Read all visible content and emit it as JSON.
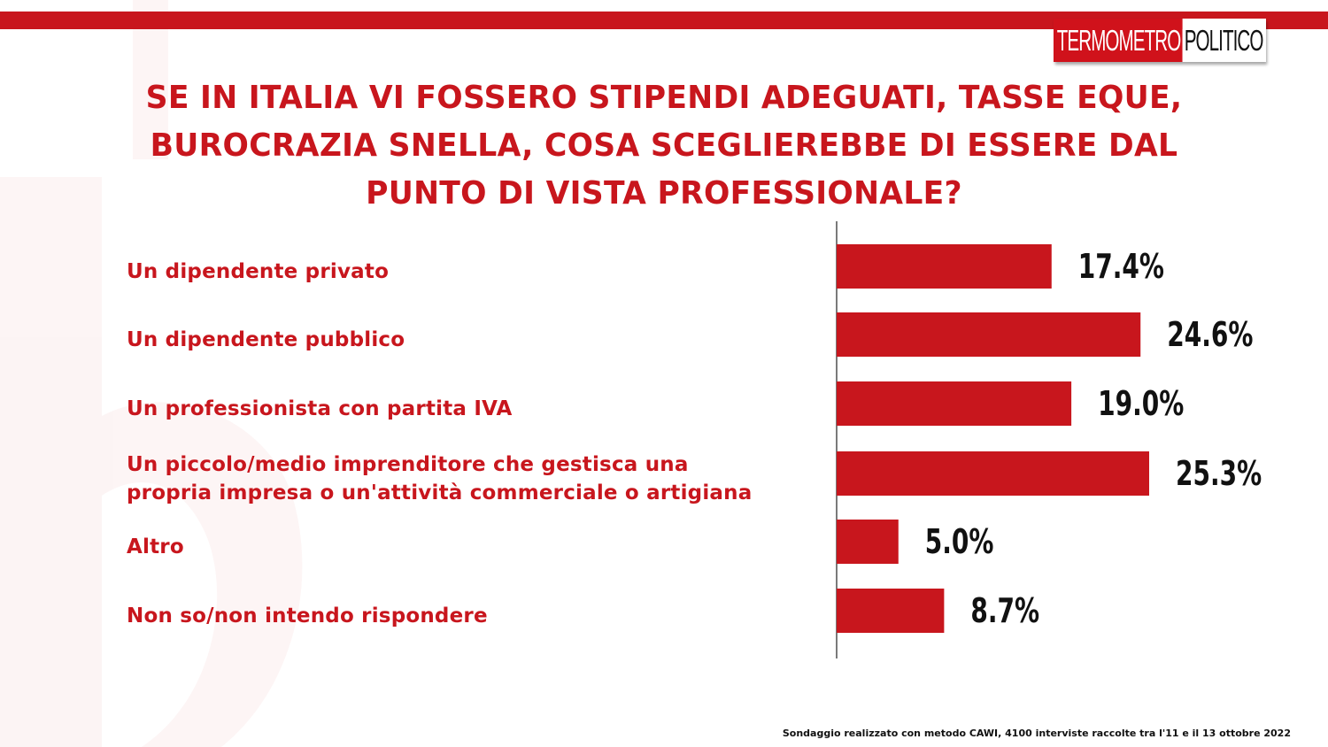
{
  "brand": {
    "logo_left": "TERMOMETRO",
    "logo_right": "POLITICO",
    "accent_color": "#c8161d",
    "text_color": "#111111"
  },
  "title_lines": [
    "SE IN ITALIA VI FOSSERO STIPENDI ADEGUATI, TASSE EQUE,",
    "BUROCRAZIA SNELLA, COSA SCEGLIEREBBE DI ESSERE DAL",
    "PUNTO DI VISTA PROFESSIONALE?"
  ],
  "footnote": "Sondaggio realizzato con metodo CAWI, 4100 interviste raccolte tra l'11 e il 13 ottobre 2022",
  "chart_data": {
    "type": "bar",
    "orientation": "horizontal",
    "categories": [
      [
        "Un dipendente privato"
      ],
      [
        "Un dipendente pubblico"
      ],
      [
        "Un professionista con partita IVA"
      ],
      [
        "Un piccolo/medio imprenditore che gestisca una",
        "propria impresa o un'attività  commerciale o artigiana"
      ],
      [
        "Altro"
      ],
      [
        "Non so/non intendo rispondere"
      ]
    ],
    "values": [
      17.4,
      24.6,
      19.0,
      25.3,
      5.0,
      8.7
    ],
    "value_labels": [
      "17.4%",
      "24.6%",
      "19.0%",
      "25.3%",
      "5.0%",
      "8.7%"
    ],
    "unit": "%",
    "bar_color": "#c8161d",
    "xlim": [
      0,
      35
    ],
    "grid": false,
    "legend": false
  }
}
